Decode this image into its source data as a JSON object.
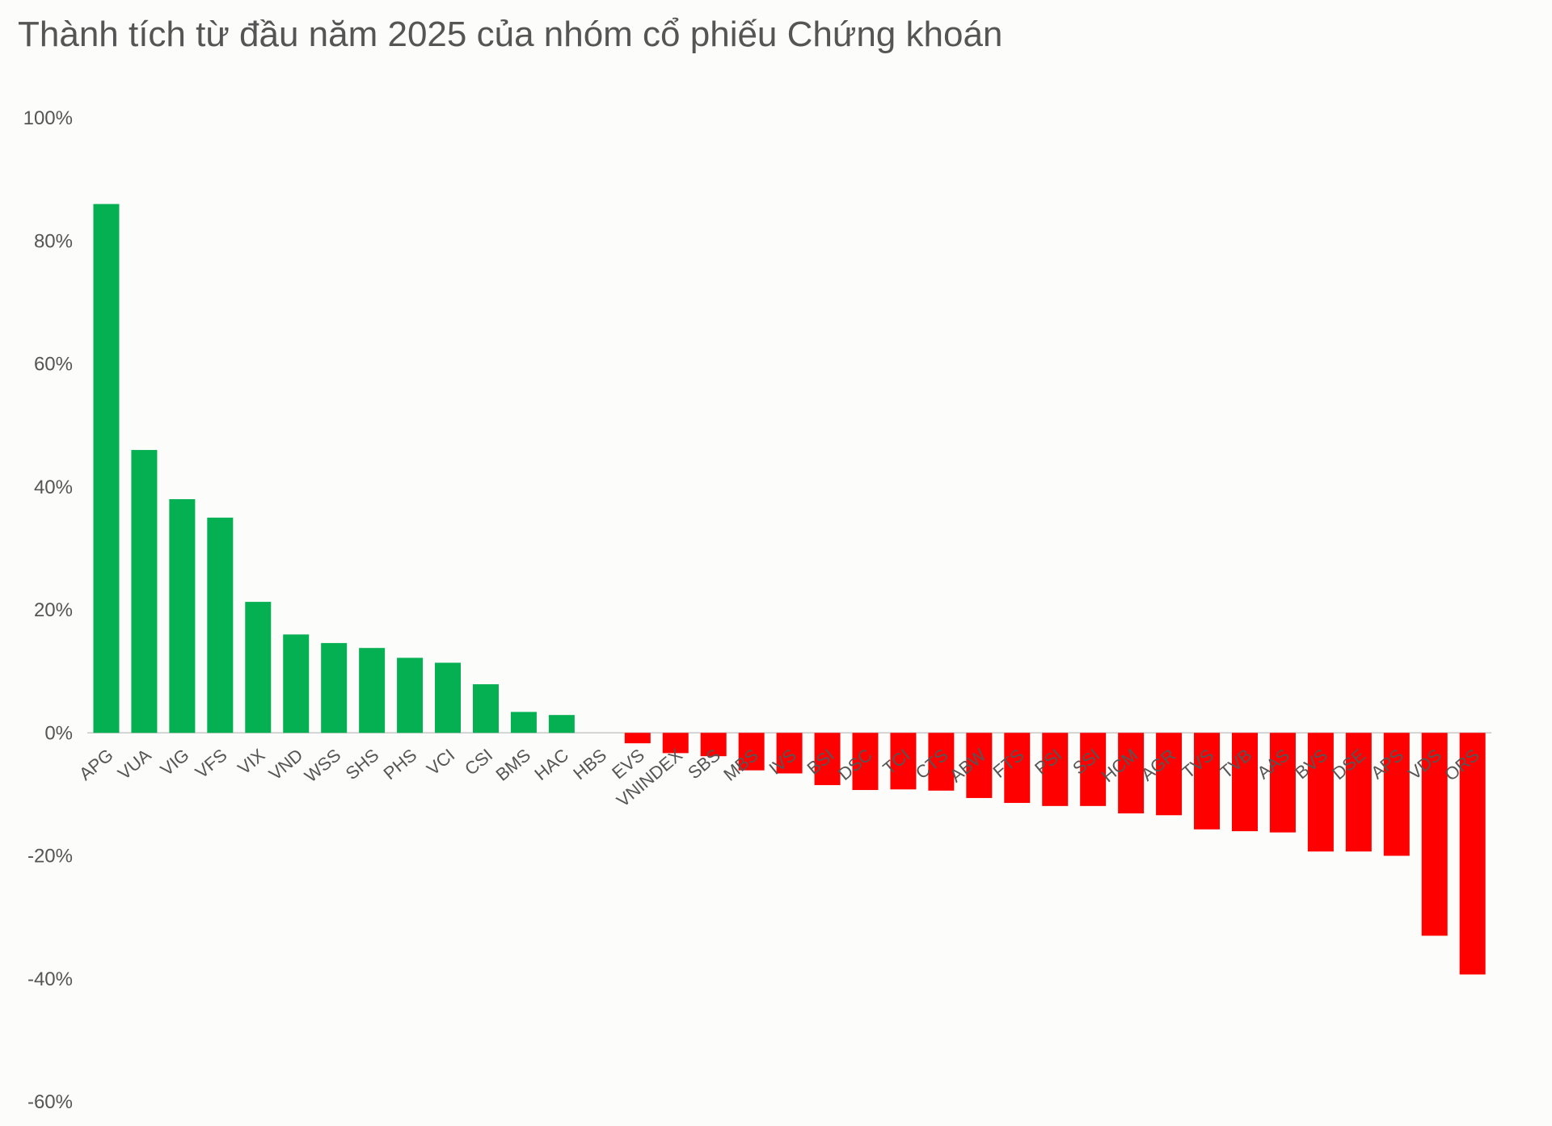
{
  "chart_data": {
    "type": "bar",
    "title": "Thành tích từ đầu năm 2025 của nhóm cổ phiếu Chứng khoán",
    "xlabel": "",
    "ylabel": "",
    "ylim": [
      -60,
      100
    ],
    "y_ticks": [
      "100%",
      "80%",
      "60%",
      "40%",
      "20%",
      "0%",
      "-20%",
      "-40%",
      "-60%"
    ],
    "y_tick_values": [
      100,
      80,
      60,
      40,
      20,
      0,
      -20,
      -40,
      -60
    ],
    "grid": false,
    "legend": "none",
    "colors": {
      "positive": "#05b052",
      "negative": "#ff0000",
      "text": "#555555",
      "baseline": "#c8c8c8"
    },
    "categories": [
      "APG",
      "VUA",
      "VIG",
      "VFS",
      "VIX",
      "VND",
      "WSS",
      "SHS",
      "PHS",
      "VCI",
      "CSI",
      "BMS",
      "HAC",
      "HBS",
      "EVS",
      "VNINDEX",
      "SBS",
      "MBS",
      "IVS",
      "BSI",
      "DSC",
      "TCI",
      "CTS",
      "ABW",
      "FTS",
      "PSI",
      "SSI",
      "HCM",
      "AGR",
      "TVS",
      "TVB",
      "AAS",
      "BVS",
      "DSE",
      "APS",
      "VDS",
      "ORS"
    ],
    "values": [
      86,
      46,
      38,
      35,
      21.3,
      16,
      14.6,
      13.8,
      12.2,
      11.4,
      7.9,
      3.4,
      2.9,
      0,
      -1.7,
      -3.3,
      -3.8,
      -6.1,
      -6.6,
      -8.5,
      -9.3,
      -9.2,
      -9.4,
      -10.6,
      -11.4,
      -11.9,
      -11.9,
      -13.1,
      -13.4,
      -15.7,
      -16.0,
      -16.2,
      -19.3,
      -19.3,
      -20.0,
      -33.0,
      -39.3
    ]
  }
}
